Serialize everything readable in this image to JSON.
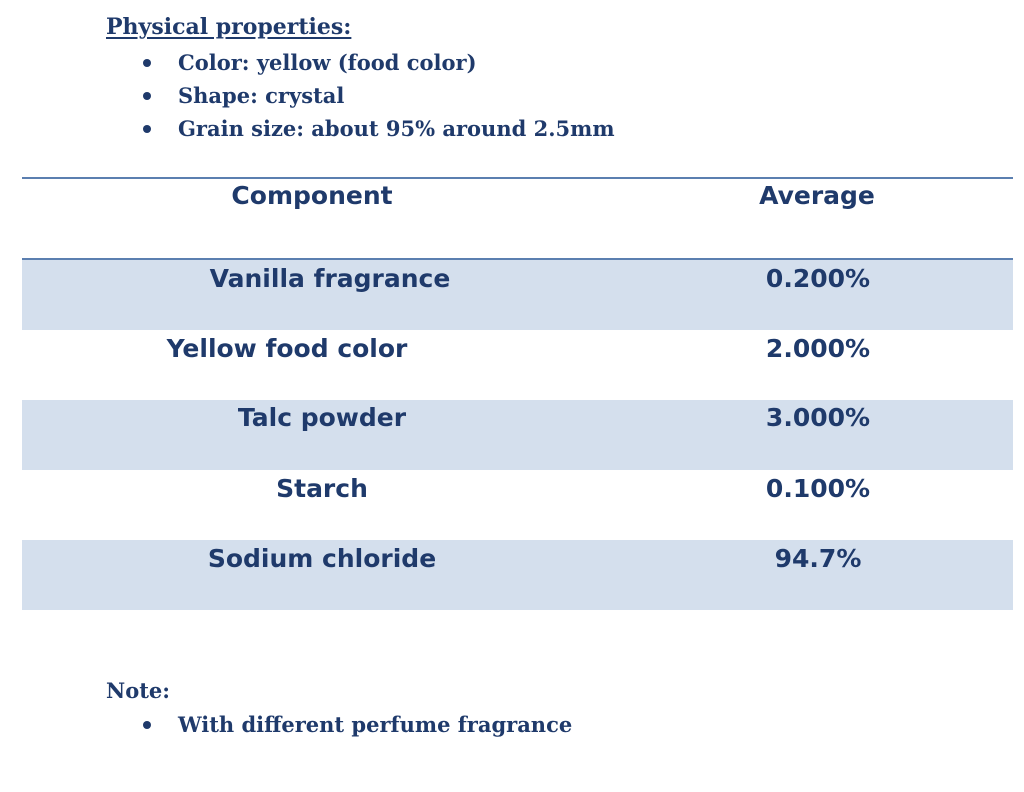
{
  "physical_properties": {
    "heading": "Physical properties:",
    "items": [
      "Color: yellow (food color)",
      "Shape: crystal",
      "Grain size: about 95% around 2.5mm"
    ]
  },
  "table": {
    "headers": [
      "Component",
      "Average"
    ],
    "rows": [
      [
        "Vanilla fragrance",
        "0.200%"
      ],
      [
        "Yellow food color",
        "2.000%"
      ],
      [
        "Talc powder",
        "3.000%"
      ],
      [
        "Starch",
        "0.100%"
      ],
      [
        "Sodium chloride",
        "94.7%"
      ]
    ]
  },
  "note": {
    "heading": "Note:",
    "items": [
      "With different perfume fragrance"
    ]
  },
  "colors": {
    "text": "#1f3a6b",
    "row_shade": "#d4dfed",
    "rule": "#5b7fb0"
  }
}
